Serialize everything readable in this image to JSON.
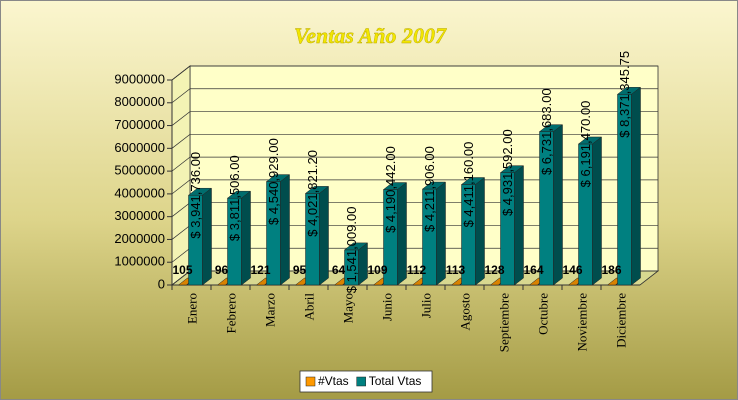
{
  "chart_data": {
    "type": "bar3d",
    "title": "Ventas Año 2007",
    "categories": [
      "Enero",
      "Febrero",
      "Marzo",
      "Abril",
      "Mayo",
      "Junio",
      "Julio",
      "Agosto",
      "Septiembre",
      "Octubre",
      "Noviembre",
      "Diciembre"
    ],
    "series": [
      {
        "name": "#Vtas",
        "color": "#ff9900",
        "values": [
          105,
          96,
          121,
          95,
          64,
          109,
          112,
          113,
          128,
          164,
          146,
          186
        ]
      },
      {
        "name": "Total Vtas",
        "color": "#008080",
        "values": [
          3941736,
          3811506,
          4540929,
          4021821.2,
          1541009,
          4190442,
          4211906,
          4411160,
          4931592,
          6731683,
          6191470,
          8371345.75
        ],
        "value_labels": [
          "$ 3,941,736.00",
          "$ 3,811,506.00",
          "$ 4,540,929.00",
          "$ 4,021,821.20",
          "$ 1,541,009.00",
          "$ 4,190,442.00",
          "$ 4,211,906.00",
          "$ 4,411,160.00",
          "$ 4,931,592.00",
          "$ 6,731,683.00",
          "$ 6,191,470.00",
          "$ 8,371,345.75"
        ]
      }
    ],
    "ylim": [
      0,
      9000000
    ],
    "yticks": [
      0,
      1000000,
      2000000,
      3000000,
      4000000,
      5000000,
      6000000,
      7000000,
      8000000,
      9000000
    ],
    "grid": true,
    "legend": "bottom"
  }
}
